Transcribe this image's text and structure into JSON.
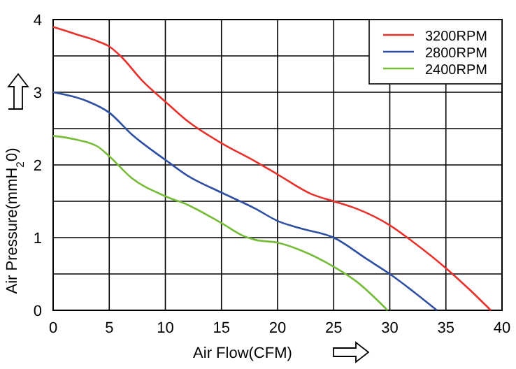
{
  "chart_data": {
    "type": "line",
    "xlabel": "Air Flow(CFM)",
    "ylabel": "Air Pressure(mmH$_{2}$0)",
    "xlim": [
      0,
      40
    ],
    "xticks": [
      0,
      5,
      10,
      15,
      20,
      25,
      30,
      35,
      40
    ],
    "ylim": [
      0,
      4
    ],
    "yticks": [
      0,
      {
        "value": 0.5,
        "label": null
      },
      1,
      {
        "value": 1.5,
        "label": null
      },
      2,
      {
        "value": 2.5,
        "label": null
      },
      3,
      {
        "value": 3.5,
        "label": null
      },
      4
    ],
    "grid": true,
    "legend": "top right",
    "marker": "none",
    "line_style": "solid",
    "series": [
      {
        "name": "3200RPM",
        "color": "#e8312a",
        "x": [
          0,
          2,
          4,
          5,
          6,
          8,
          10,
          12,
          15,
          18,
          20,
          23,
          25,
          27,
          30,
          32,
          35,
          37,
          39
        ],
        "values": [
          3.9,
          3.8,
          3.7,
          3.63,
          3.5,
          3.15,
          2.87,
          2.6,
          2.3,
          2.05,
          1.87,
          1.6,
          1.5,
          1.4,
          1.17,
          0.95,
          0.58,
          0.3,
          0
        ]
      },
      {
        "name": "2800RPM",
        "color": "#2f4fa2",
        "x": [
          0,
          3,
          5,
          7,
          10,
          12,
          15,
          18,
          20,
          22,
          25,
          28,
          30,
          32,
          34.2
        ],
        "values": [
          3,
          2.88,
          2.72,
          2.42,
          2.07,
          1.85,
          1.62,
          1.4,
          1.23,
          1.13,
          1,
          0.7,
          0.5,
          0.27,
          0
        ]
      },
      {
        "name": "2400RPM",
        "color": "#77bb3a",
        "x": [
          0,
          2,
          4,
          5,
          7,
          10,
          12,
          15,
          17,
          18,
          20,
          22,
          25,
          27,
          29.8
        ],
        "values": [
          2.4,
          2.35,
          2.25,
          2.12,
          1.82,
          1.57,
          1.45,
          1.2,
          1.02,
          0.97,
          0.93,
          0.83,
          0.6,
          0.4,
          0
        ]
      }
    ]
  }
}
